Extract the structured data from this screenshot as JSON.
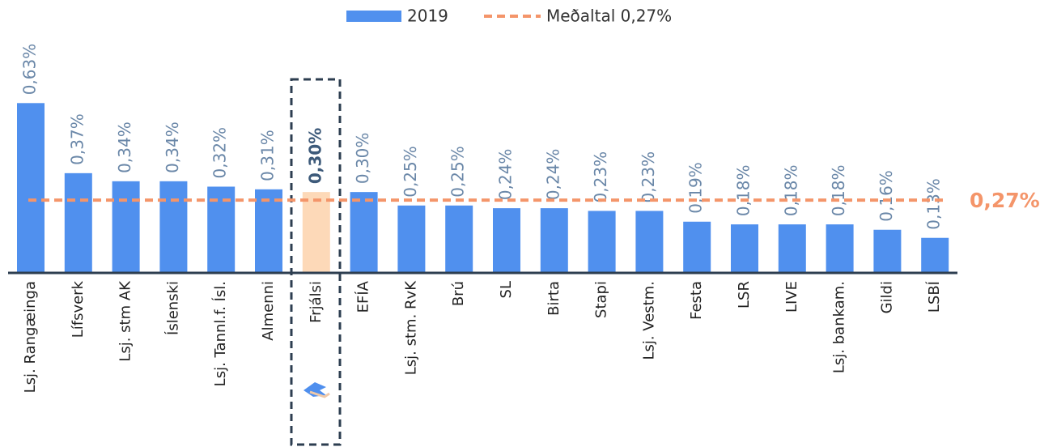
{
  "chart_data": {
    "type": "bar",
    "categories": [
      "Lsj. Rangæinga",
      "Lífsverk",
      "Lsj. stm AK",
      "Íslenski",
      "Lsj. Tannl.f. Ísl.",
      "Almenni",
      "Frjálsi",
      "EFÍA",
      "Lsj. stm. RvK",
      "Brú",
      "SL",
      "Birta",
      "Stapi",
      "Lsj. Vestm.",
      "Festa",
      "LSR",
      "LIVE",
      "Lsj. bankam.",
      "Gildi",
      "LSBÍ"
    ],
    "series": [
      {
        "name": "2019",
        "color": "#5090ee",
        "values": [
          0.63,
          0.37,
          0.34,
          0.34,
          0.32,
          0.31,
          0.3,
          0.3,
          0.25,
          0.25,
          0.24,
          0.24,
          0.23,
          0.23,
          0.19,
          0.18,
          0.18,
          0.18,
          0.16,
          0.13
        ],
        "value_labels": [
          "0,63%",
          "0,37%",
          "0,34%",
          "0,34%",
          "0,32%",
          "0,31%",
          "0,30%",
          "0,30%",
          "0,25%",
          "0,25%",
          "0,24%",
          "0,24%",
          "0,23%",
          "0,23%",
          "0,19%",
          "0,18%",
          "0,18%",
          "0,18%",
          "0,16%",
          "0,13%"
        ]
      }
    ],
    "highlight_index": 6,
    "highlight_color": "#fdd9b8",
    "average": {
      "name": "Meðaltal 0,27%",
      "value": 0.27,
      "label": "0,27%",
      "color": "#f4956a"
    },
    "ylim": [
      0,
      0.7
    ]
  }
}
